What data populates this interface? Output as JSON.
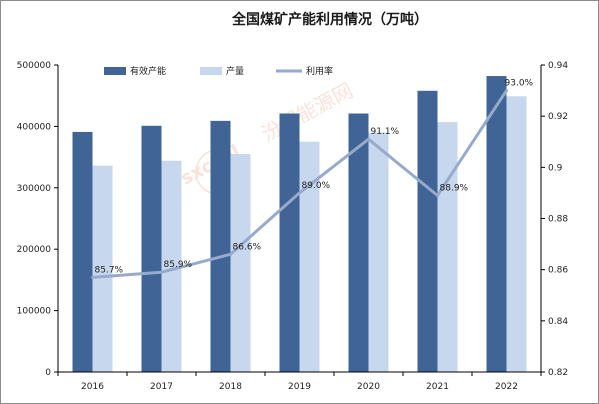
{
  "chart_data": {
    "type": "bar",
    "title": "全国煤矿产能利用情况（万吨）",
    "categories": [
      "2016",
      "2017",
      "2018",
      "2019",
      "2020",
      "2021",
      "2022"
    ],
    "series": [
      {
        "name": "有效产能",
        "kind": "bar",
        "axis": "left",
        "color": "#3f6495",
        "values": [
          391000,
          401000,
          409000,
          421000,
          421000,
          458000,
          482000
        ]
      },
      {
        "name": "产量",
        "kind": "bar",
        "axis": "left",
        "color": "#c6d7ee",
        "values": [
          336000,
          344000,
          355000,
          375000,
          390000,
          407000,
          449000
        ]
      },
      {
        "name": "利用率",
        "kind": "line",
        "axis": "right",
        "color": "#97aacb",
        "values": [
          0.857,
          0.859,
          0.866,
          0.89,
          0.911,
          0.889,
          0.93
        ],
        "labels": [
          "85.7%",
          "85.9%",
          "86.6%",
          "89.0%",
          "91.1%",
          "88.9%",
          "93.0%"
        ]
      }
    ],
    "y_left": {
      "min": 0,
      "max": 500000,
      "ticks": [
        0,
        100000,
        200000,
        300000,
        400000,
        500000
      ],
      "tick_labels": [
        "0",
        "100000",
        "200000",
        "300000",
        "400000",
        "500000"
      ]
    },
    "y_right": {
      "min": 0.82,
      "max": 0.94,
      "ticks": [
        0.82,
        0.84,
        0.86,
        0.88,
        0.9,
        0.92,
        0.94
      ],
      "tick_labels": [
        "0.82",
        "0.84",
        "0.86",
        "0.88",
        "0.9",
        "0.92",
        "0.94"
      ]
    },
    "legend_position": "top-center",
    "grid": false
  },
  "watermark": "国 sxcoal.com 汾渭能源网"
}
